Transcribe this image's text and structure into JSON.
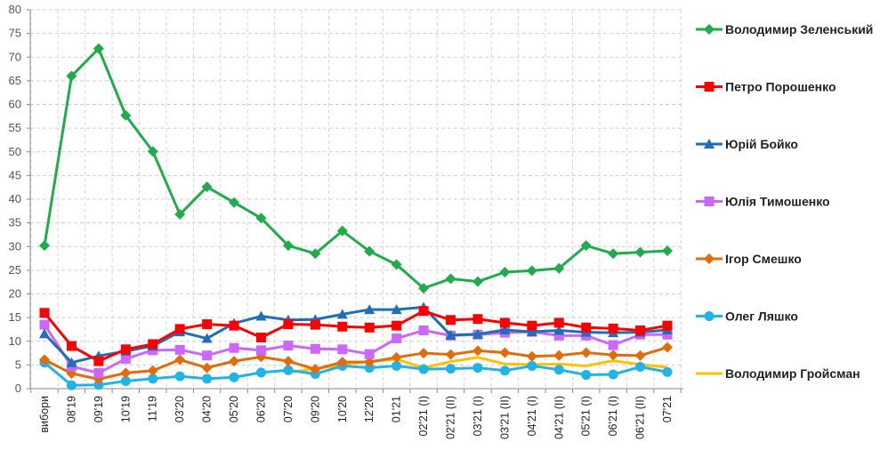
{
  "chart_data": {
    "type": "line",
    "title": "",
    "xlabel": "",
    "ylabel": "",
    "ylim": [
      0,
      80
    ],
    "yticks": [
      0,
      5,
      10,
      15,
      20,
      25,
      30,
      35,
      40,
      45,
      50,
      55,
      60,
      65,
      70,
      75,
      80
    ],
    "grid": true,
    "legend_position": "right",
    "categories": [
      "вибори",
      "08'19",
      "09'19",
      "10'19",
      "11'19",
      "03'20",
      "04'20",
      "05'20",
      "06'20",
      "07'20",
      "09'20",
      "10'20",
      "12'20",
      "01'21",
      "02'21 (I)",
      "02'21 (II)",
      "03'21 (I)",
      "03'21 (II)",
      "04'21 (I)",
      "04'21 (II)",
      "05'21 (I)",
      "06'21 (I)",
      "06'21 (II)",
      "07'21"
    ],
    "series": [
      {
        "name": "Володимир Зеленський",
        "color": "#1fad4b",
        "marker": "diamond",
        "values": [
          30.2,
          66,
          71.8,
          57.7,
          50.1,
          36.8,
          42.6,
          39.3,
          36,
          30.2,
          28.5,
          33.3,
          29,
          26.2,
          21.2,
          23.2,
          22.6,
          24.6,
          24.9,
          25.4,
          30.2,
          28.5,
          28.8,
          29.1
        ]
      },
      {
        "name": "Петро Порошенко",
        "color": "#ff0000",
        "marker": "square",
        "values": [
          16,
          9,
          5.8,
          8.3,
          9.4,
          12.6,
          13.6,
          13.3,
          10.8,
          13.6,
          13.5,
          13.1,
          12.9,
          13.3,
          16.4,
          14.5,
          14.7,
          13.9,
          13.3,
          13.9,
          12.9,
          12.7,
          12.3,
          13.3
        ]
      },
      {
        "name": "Юрій Бойко",
        "color": "#1f6fb8",
        "marker": "triangle",
        "values": [
          11.6,
          5.5,
          6.9,
          7.9,
          9,
          12,
          10.6,
          13.8,
          15.3,
          14.5,
          14.6,
          15.7,
          16.7,
          16.7,
          17.2,
          11.3,
          11.5,
          12.4,
          12,
          12.3,
          11.9,
          11.8,
          11.9,
          12.4
        ]
      },
      {
        "name": "Юлія Тимошенко",
        "color": "#cc66ff",
        "marker": "square",
        "values": [
          13.5,
          4.7,
          3.3,
          6.3,
          8.1,
          8.2,
          7,
          8.6,
          8.1,
          9.1,
          8.4,
          8.3,
          7.3,
          10.6,
          12.3,
          11.2,
          11.4,
          11.8,
          12,
          11.2,
          11.2,
          9.2,
          11.4,
          11.4
        ]
      },
      {
        "name": "Ігор Смешко",
        "color": "#e36c0a",
        "marker": "diamond",
        "values": [
          6.1,
          3.2,
          2,
          3.3,
          3.8,
          6.1,
          4.4,
          5.8,
          6.7,
          5.8,
          4.1,
          5.6,
          5.6,
          6.6,
          7.5,
          7.2,
          8,
          7.6,
          6.8,
          7,
          7.6,
          7.1,
          7,
          8.7
        ]
      },
      {
        "name": "Олег Ляшко",
        "color": "#1fb4e8",
        "marker": "circle",
        "values": [
          5.5,
          0.7,
          0.8,
          1.6,
          2.1,
          2.6,
          2.1,
          2.4,
          3.4,
          3.9,
          3.1,
          4.8,
          4.4,
          4.8,
          4.1,
          4.2,
          4.4,
          3.8,
          4.8,
          4,
          2.9,
          3,
          4.6,
          3.5
        ]
      },
      {
        "name": "Володимир Гройсман",
        "color": "#ffc000",
        "marker": "none",
        "values": [
          null,
          null,
          null,
          null,
          null,
          null,
          null,
          null,
          null,
          3.4,
          4.2,
          5.0,
          5.8,
          6.2,
          4.4,
          5.7,
          6.6,
          5.2,
          5.1,
          5.2,
          4.8,
          5.9,
          5.1,
          4.5
        ]
      }
    ]
  }
}
